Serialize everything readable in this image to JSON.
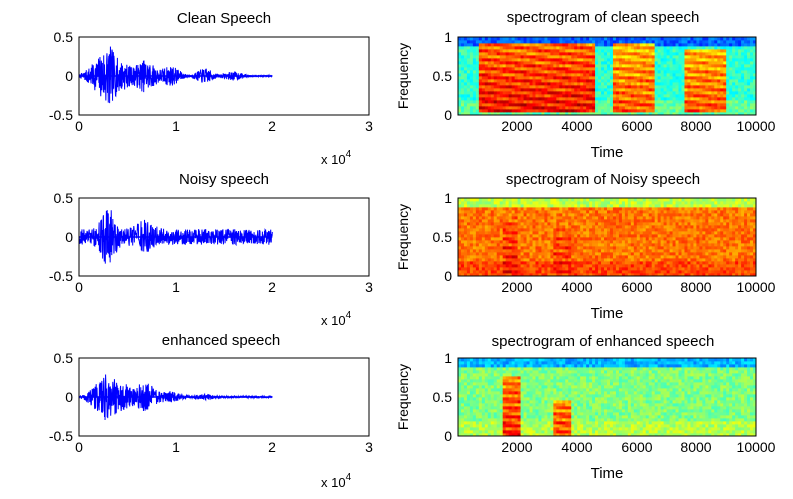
{
  "chart_data": [
    {
      "type": "line",
      "title": "Clean Speech",
      "xlim": [
        0,
        3
      ],
      "ylim": [
        -0.5,
        0.5
      ],
      "x_ticks": [
        "0",
        "1",
        "2",
        "3"
      ],
      "y_ticks": [
        "-0.5",
        "0",
        "0.5"
      ],
      "x_exponent": "x 10",
      "x_exponent_power": "4",
      "signal_end": 2.0,
      "series_color": "#0000ff",
      "noise_floor": 0.008,
      "bursts": [
        [
          0.15,
          0.07,
          0.12
        ],
        [
          0.3,
          0.07,
          0.38
        ],
        [
          0.46,
          0.06,
          0.14
        ],
        [
          0.68,
          0.09,
          0.2
        ],
        [
          0.95,
          0.08,
          0.12
        ],
        [
          1.3,
          0.07,
          0.09
        ],
        [
          1.6,
          0.08,
          0.05
        ]
      ]
    },
    {
      "type": "heatmap",
      "title": "spectrogram of clean speech",
      "xlabel": "Time",
      "ylabel": "Frequency",
      "xlim": [
        0,
        10000
      ],
      "ylim": [
        0,
        1
      ],
      "x_ticks": [
        "2000",
        "4000",
        "6000",
        "8000",
        "10000"
      ],
      "y_ticks": [
        "0",
        "0.5",
        "1"
      ],
      "colormap": "jet",
      "background_level": 0.42,
      "regions": [
        [
          700,
          4600,
          0.05,
          0.92,
          0.88
        ],
        [
          5200,
          6600,
          0.05,
          0.92,
          0.8
        ],
        [
          7600,
          9000,
          0.05,
          0.85,
          0.8
        ]
      ]
    },
    {
      "type": "line",
      "title": "Noisy speech",
      "xlim": [
        0,
        3
      ],
      "ylim": [
        -0.5,
        0.5
      ],
      "x_ticks": [
        "0",
        "1",
        "2",
        "3"
      ],
      "y_ticks": [
        "-0.5",
        "0",
        "0.5"
      ],
      "x_exponent": "x 10",
      "x_exponent_power": "4",
      "signal_end": 2.0,
      "series_color": "#0000ff",
      "noise_floor": 0.1,
      "bursts": [
        [
          0.3,
          0.06,
          0.3
        ],
        [
          0.68,
          0.08,
          0.12
        ]
      ]
    },
    {
      "type": "heatmap",
      "title": "spectrogram of Noisy speech",
      "xlabel": "Time",
      "ylabel": "Frequency",
      "xlim": [
        0,
        10000
      ],
      "ylim": [
        0,
        1
      ],
      "x_ticks": [
        "2000",
        "4000",
        "6000",
        "8000",
        "10000"
      ],
      "y_ticks": [
        "0",
        "0.5",
        "1"
      ],
      "colormap": "jet",
      "background_level": 0.76,
      "regions": [
        [
          1500,
          2000,
          0.05,
          0.75,
          0.86
        ],
        [
          3200,
          3800,
          0.05,
          0.6,
          0.84
        ]
      ]
    },
    {
      "type": "line",
      "title": "enhanced speech",
      "xlim": [
        0,
        3
      ],
      "ylim": [
        -0.5,
        0.5
      ],
      "x_ticks": [
        "0",
        "1",
        "2",
        "3"
      ],
      "y_ticks": [
        "-0.5",
        "0",
        "0.5"
      ],
      "x_exponent": "x 10",
      "x_exponent_power": "4",
      "signal_end": 2.0,
      "series_color": "#0000ff",
      "noise_floor": 0.012,
      "bursts": [
        [
          0.15,
          0.06,
          0.1
        ],
        [
          0.3,
          0.07,
          0.3
        ],
        [
          0.46,
          0.06,
          0.14
        ],
        [
          0.68,
          0.09,
          0.18
        ],
        [
          0.95,
          0.08,
          0.06
        ],
        [
          1.3,
          0.07,
          0.03
        ]
      ]
    },
    {
      "type": "heatmap",
      "title": "spectrogram of enhanced speech",
      "xlabel": "Time",
      "ylabel": "Frequency",
      "xlim": [
        0,
        10000
      ],
      "ylim": [
        0,
        1
      ],
      "x_ticks": [
        "2000",
        "4000",
        "6000",
        "8000",
        "10000"
      ],
      "y_ticks": [
        "0",
        "0.5",
        "1"
      ],
      "colormap": "jet",
      "background_level": 0.5,
      "regions": [
        [
          1500,
          2100,
          0.0,
          0.75,
          0.84
        ],
        [
          3200,
          3800,
          0.0,
          0.45,
          0.8
        ]
      ]
    }
  ]
}
